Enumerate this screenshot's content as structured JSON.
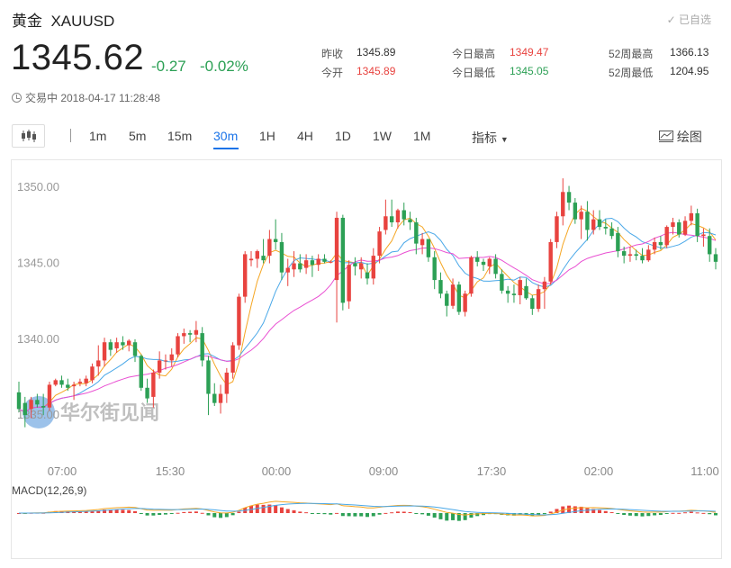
{
  "header": {
    "name": "黄金",
    "symbol": "XAUUSD",
    "fav_label": "✓ 已自选",
    "price": "1345.62",
    "change": "-0.27",
    "change_pct": "-0.02%",
    "status": "交易中 2018-04-17 11:28:48"
  },
  "stats": {
    "prev_close_label": "昨收",
    "prev_close": "1345.89",
    "open_label": "今开",
    "open": "1345.89",
    "high_label": "今日最高",
    "high": "1349.47",
    "low_label": "今日最低",
    "low": "1345.05",
    "w52_high_label": "52周最高",
    "w52_high": "1366.13",
    "w52_low_label": "52周最低",
    "w52_low": "1204.95"
  },
  "toolbar": {
    "timeframes": [
      "1m",
      "5m",
      "15m",
      "30m",
      "1H",
      "4H",
      "1D",
      "1W",
      "1M"
    ],
    "active": "30m",
    "indicator_label": "指标",
    "draw_label": "绘图"
  },
  "watermark": "华尔街见闻",
  "colors": {
    "up": "#e8433f",
    "down": "#2ca055",
    "ma_fast": "#f5a623",
    "ma_mid": "#4aa8e8",
    "ma_slow": "#e94fd2",
    "accent": "#1a73e8"
  },
  "chart_data": {
    "type": "candlestick",
    "y_axis": {
      "ticks": [
        "1350.00",
        "1345.00",
        "1340.00",
        "1335.00"
      ],
      "range": [
        1334.0,
        1351.2
      ]
    },
    "x_axis": {
      "ticks": [
        "07:00",
        "15:30",
        "00:00",
        "09:00",
        "17:30",
        "02:00",
        "11:00"
      ]
    },
    "candles": [
      [
        1336.5,
        1337.2,
        1335.2,
        1335.4
      ],
      [
        1335.8,
        1336.2,
        1334.2,
        1335.0
      ],
      [
        1335.4,
        1336.2,
        1334.8,
        1336.0
      ],
      [
        1336.0,
        1336.4,
        1335.5,
        1335.7
      ],
      [
        1335.6,
        1336.4,
        1335.0,
        1335.5
      ],
      [
        1335.5,
        1337.2,
        1335.3,
        1337.0
      ],
      [
        1337.0,
        1337.4,
        1336.9,
        1337.3
      ],
      [
        1337.3,
        1337.6,
        1336.8,
        1337.0
      ],
      [
        1337.0,
        1337.4,
        1336.6,
        1336.8
      ],
      [
        1336.9,
        1337.2,
        1336.0,
        1337.0
      ],
      [
        1337.1,
        1337.4,
        1336.9,
        1337.2
      ],
      [
        1337.1,
        1337.6,
        1336.9,
        1337.4
      ],
      [
        1337.3,
        1338.4,
        1337.1,
        1338.2
      ],
      [
        1338.2,
        1339.6,
        1337.6,
        1338.6
      ],
      [
        1338.6,
        1340.1,
        1338.2,
        1339.8
      ],
      [
        1339.8,
        1340.0,
        1338.9,
        1339.3
      ],
      [
        1339.4,
        1340.1,
        1339.1,
        1339.8
      ],
      [
        1339.8,
        1340.2,
        1339.3,
        1339.6
      ],
      [
        1339.6,
        1340.0,
        1339.2,
        1339.9
      ],
      [
        1339.8,
        1340.0,
        1338.5,
        1338.9
      ],
      [
        1338.9,
        1339.0,
        1336.6,
        1336.8
      ],
      [
        1336.8,
        1337.4,
        1335.8,
        1336.1
      ],
      [
        1336.2,
        1338.0,
        1335.5,
        1337.8
      ],
      [
        1337.8,
        1339.2,
        1337.4,
        1338.6
      ],
      [
        1338.6,
        1339.0,
        1338.0,
        1338.6
      ],
      [
        1338.6,
        1339.4,
        1338.2,
        1339.0
      ],
      [
        1339.0,
        1340.4,
        1338.8,
        1340.2
      ],
      [
        1340.2,
        1340.7,
        1339.7,
        1340.4
      ],
      [
        1340.4,
        1340.6,
        1339.8,
        1340.3
      ],
      [
        1340.3,
        1341.2,
        1339.8,
        1340.6
      ],
      [
        1340.4,
        1340.8,
        1338.2,
        1338.6
      ],
      [
        1338.6,
        1338.9,
        1335.0,
        1336.4
      ],
      [
        1336.4,
        1337.1,
        1335.6,
        1335.8
      ],
      [
        1335.8,
        1337.0,
        1335.1,
        1336.4
      ],
      [
        1336.4,
        1338.1,
        1335.8,
        1337.8
      ],
      [
        1337.8,
        1339.8,
        1337.4,
        1339.6
      ],
      [
        1339.6,
        1343.0,
        1339.3,
        1342.8
      ],
      [
        1342.8,
        1345.8,
        1342.4,
        1345.6
      ],
      [
        1345.2,
        1345.8,
        1344.8,
        1345.3
      ],
      [
        1345.3,
        1345.9,
        1344.7,
        1345.8
      ],
      [
        1345.5,
        1346.6,
        1345.0,
        1345.2
      ],
      [
        1345.5,
        1347.2,
        1345.0,
        1346.6
      ],
      [
        1346.6,
        1347.9,
        1345.9,
        1346.4
      ],
      [
        1346.4,
        1347.0,
        1343.9,
        1344.4
      ],
      [
        1344.4,
        1345.3,
        1343.5,
        1344.7
      ],
      [
        1344.6,
        1345.8,
        1344.1,
        1345.0
      ],
      [
        1345.0,
        1345.6,
        1344.4,
        1344.6
      ],
      [
        1344.7,
        1345.6,
        1344.3,
        1345.2
      ],
      [
        1345.2,
        1345.5,
        1344.1,
        1344.9
      ],
      [
        1344.9,
        1345.6,
        1344.5,
        1345.3
      ],
      [
        1345.3,
        1345.6,
        1345.0,
        1345.1
      ],
      [
        1345.1,
        1345.2,
        1345.0,
        1345.1
      ],
      [
        1343.9,
        1348.4,
        1341.1,
        1348.0
      ],
      [
        1348.0,
        1348.2,
        1341.9,
        1342.4
      ],
      [
        1342.5,
        1345.2,
        1342.0,
        1344.9
      ],
      [
        1345.0,
        1345.4,
        1344.2,
        1344.8
      ],
      [
        1344.6,
        1345.4,
        1344.0,
        1345.0
      ],
      [
        1344.4,
        1345.0,
        1343.6,
        1344.0
      ],
      [
        1344.0,
        1346.0,
        1343.6,
        1345.5
      ],
      [
        1345.5,
        1347.4,
        1345.0,
        1347.1
      ],
      [
        1347.2,
        1349.2,
        1346.9,
        1348.1
      ],
      [
        1348.1,
        1349.2,
        1347.4,
        1347.7
      ],
      [
        1347.7,
        1348.6,
        1347.3,
        1348.5
      ],
      [
        1348.5,
        1349.0,
        1347.5,
        1347.9
      ],
      [
        1347.9,
        1348.4,
        1347.2,
        1347.7
      ],
      [
        1347.7,
        1348.0,
        1345.6,
        1346.3
      ],
      [
        1346.2,
        1347.0,
        1345.6,
        1346.6
      ],
      [
        1346.6,
        1346.6,
        1345.1,
        1345.4
      ],
      [
        1345.4,
        1345.8,
        1343.3,
        1343.9
      ],
      [
        1343.9,
        1344.4,
        1342.7,
        1343.0
      ],
      [
        1343.0,
        1343.2,
        1341.5,
        1342.2
      ],
      [
        1342.2,
        1344.0,
        1342.0,
        1343.6
      ],
      [
        1343.6,
        1343.8,
        1341.6,
        1341.8
      ],
      [
        1341.8,
        1343.2,
        1341.5,
        1343.0
      ],
      [
        1343.0,
        1345.5,
        1342.8,
        1345.4
      ],
      [
        1345.4,
        1345.8,
        1344.8,
        1345.1
      ],
      [
        1345.1,
        1345.3,
        1344.5,
        1344.9
      ],
      [
        1344.8,
        1345.4,
        1344.3,
        1345.3
      ],
      [
        1345.3,
        1345.6,
        1344.0,
        1344.3
      ],
      [
        1344.3,
        1344.6,
        1343.0,
        1343.2
      ],
      [
        1343.2,
        1343.5,
        1342.4,
        1343.0
      ],
      [
        1343.0,
        1343.6,
        1342.4,
        1342.9
      ],
      [
        1342.9,
        1344.1,
        1342.3,
        1343.9
      ],
      [
        1343.5,
        1344.0,
        1342.6,
        1342.7
      ],
      [
        1342.7,
        1342.9,
        1341.6,
        1342.0
      ],
      [
        1342.0,
        1343.6,
        1341.8,
        1343.3
      ],
      [
        1343.3,
        1344.1,
        1342.0,
        1343.8
      ],
      [
        1343.8,
        1346.6,
        1343.6,
        1346.4
      ],
      [
        1346.4,
        1348.4,
        1346.0,
        1348.1
      ],
      [
        1348.1,
        1350.6,
        1347.5,
        1349.7
      ],
      [
        1349.7,
        1350.1,
        1348.5,
        1349.0
      ],
      [
        1349.0,
        1349.3,
        1347.6,
        1347.9
      ],
      [
        1347.9,
        1348.8,
        1346.6,
        1348.4
      ],
      [
        1348.4,
        1349.1,
        1346.5,
        1347.2
      ],
      [
        1347.2,
        1348.5,
        1346.9,
        1347.9
      ],
      [
        1347.9,
        1348.5,
        1347.2,
        1347.4
      ],
      [
        1347.4,
        1347.9,
        1346.9,
        1347.3
      ],
      [
        1347.3,
        1347.7,
        1346.6,
        1346.8
      ],
      [
        1347.0,
        1347.4,
        1345.4,
        1345.8
      ],
      [
        1345.8,
        1346.1,
        1345.0,
        1345.5
      ],
      [
        1345.5,
        1346.1,
        1345.1,
        1345.6
      ],
      [
        1345.6,
        1345.9,
        1345.2,
        1345.5
      ],
      [
        1345.5,
        1346.0,
        1345.0,
        1345.2
      ],
      [
        1345.2,
        1346.2,
        1345.1,
        1345.9
      ],
      [
        1345.9,
        1346.7,
        1345.6,
        1346.4
      ],
      [
        1346.4,
        1346.8,
        1345.9,
        1346.2
      ],
      [
        1346.2,
        1347.5,
        1346.0,
        1347.4
      ],
      [
        1347.4,
        1348.0,
        1346.9,
        1347.7
      ],
      [
        1347.7,
        1347.9,
        1346.7,
        1346.9
      ],
      [
        1346.9,
        1348.1,
        1346.8,
        1347.8
      ],
      [
        1347.8,
        1348.8,
        1347.5,
        1348.3
      ],
      [
        1348.3,
        1348.6,
        1346.4,
        1346.8
      ],
      [
        1346.8,
        1347.3,
        1346.1,
        1346.9
      ],
      [
        1346.8,
        1347.3,
        1345.1,
        1345.6
      ],
      [
        1345.6,
        1346.0,
        1344.6,
        1345.1
      ]
    ],
    "ma": {
      "ma_fast": 5,
      "ma_mid": 10,
      "ma_slow": 20
    },
    "macd": {
      "label": "MACD(12,26,9)"
    }
  }
}
